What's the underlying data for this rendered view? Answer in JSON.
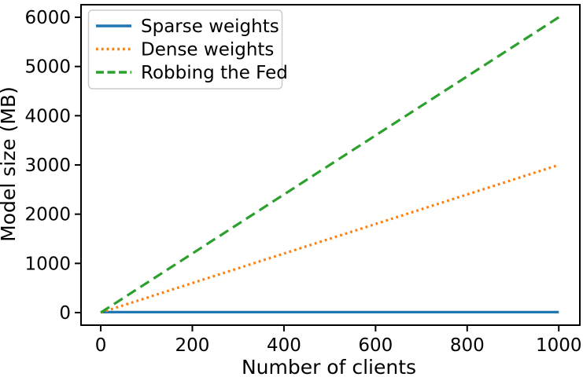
{
  "figure": {
    "background": "#ffffff",
    "text_color": "#000000",
    "spine_color": "#000000",
    "legend_border_color": "#cccccc",
    "legend_background": "rgba(255,255,255,0.85)"
  },
  "chart_data": {
    "type": "line",
    "title": "",
    "xlabel": "Number of clients",
    "ylabel": "Model size (MB)",
    "xlim": [
      -43,
      1046
    ],
    "ylim": [
      -255,
      6255
    ],
    "x_ticks": [
      0,
      200,
      400,
      600,
      800,
      1000
    ],
    "y_ticks": [
      0,
      1000,
      2000,
      3000,
      4000,
      5000,
      6000
    ],
    "grid": false,
    "legend_position": "upper left",
    "series": [
      {
        "name": "Sparse weights",
        "color": "#1f77b4",
        "style": "solid",
        "x": [
          0,
          1000
        ],
        "y": [
          10,
          10
        ]
      },
      {
        "name": "Dense weights",
        "color": "#ff7f0e",
        "style": "dotted",
        "x": [
          0,
          1000
        ],
        "y": [
          0,
          3000
        ]
      },
      {
        "name": "Robbing the Fed",
        "color": "#2ca02c",
        "style": "dashed",
        "x": [
          0,
          1000
        ],
        "y": [
          0,
          6000
        ]
      }
    ]
  }
}
